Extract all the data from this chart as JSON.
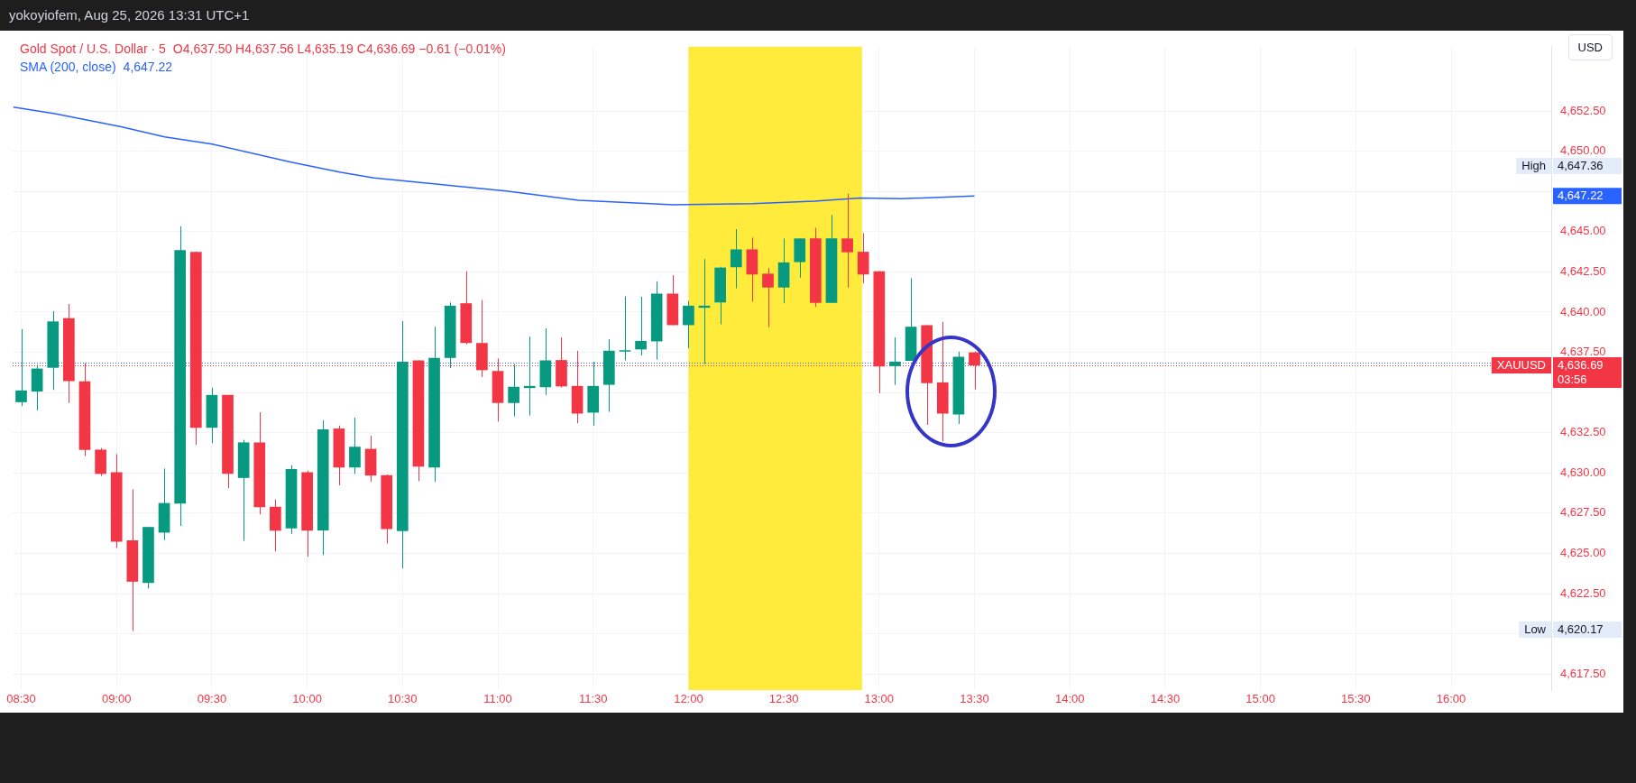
{
  "chart_data": {
    "type": "candlestick",
    "title": "Gold Spot / U.S. Dollar · 5",
    "subtitle": "O4,637.50  H4,637.56  L4,635.19  C4,636.69  −0.61 (−0.01%)",
    "x": [
      8.5,
      8.5833,
      8.6667,
      8.75,
      8.8333,
      8.9167,
      9,
      9.0833,
      9.1667,
      9.25,
      9.3333,
      9.4167,
      9.5,
      9.5833,
      9.6667,
      9.75,
      9.8333,
      9.9167,
      10,
      10.0833,
      10.1667,
      10.25,
      10.3333,
      10.4167,
      10.5,
      10.5833,
      10.6667,
      10.75,
      10.8333,
      10.9167,
      11,
      11.0833,
      11.1667,
      11.25,
      11.3333,
      11.4167,
      11.5,
      11.5833,
      11.6667,
      11.75,
      11.8333,
      11.9167,
      12,
      12.0833,
      12.1667,
      12.25,
      12.3333,
      12.4167,
      12.5,
      12.5833,
      12.6667,
      12.75,
      12.8333,
      12.9167,
      13,
      13.0833,
      13.1667,
      13.25,
      13.3333,
      13.4167,
      13.5
    ],
    "ohlc": [
      [
        4634.4,
        4638.94,
        4634.15,
        4635.13
      ],
      [
        4635.06,
        4636.72,
        4633.9,
        4636.49
      ],
      [
        4636.54,
        4640.07,
        4635.16,
        4639.42
      ],
      [
        4639.62,
        4640.5,
        4634.35,
        4635.71
      ],
      [
        4635.69,
        4636.84,
        4631.05,
        4631.43
      ],
      [
        4631.45,
        4631.55,
        4629.81,
        4629.94
      ],
      [
        4630.04,
        4631.17,
        4625.33,
        4625.73
      ],
      [
        4625.81,
        4628.98,
        4620.17,
        4623.24
      ],
      [
        4623.16,
        4626.64,
        4622.81,
        4626.64
      ],
      [
        4626.29,
        4630.27,
        4625.83,
        4628.13
      ],
      [
        4628.1,
        4645.34,
        4626.71,
        4643.85
      ],
      [
        4643.75,
        4643.75,
        4631.75,
        4632.81
      ],
      [
        4632.81,
        4635.31,
        4631.85,
        4634.85
      ],
      [
        4634.85,
        4634.85,
        4629.06,
        4629.94
      ],
      [
        4629.69,
        4632.06,
        4625.78,
        4631.9
      ],
      [
        4631.9,
        4633.77,
        4627.42,
        4627.87
      ],
      [
        4627.9,
        4628.35,
        4625.13,
        4626.41
      ],
      [
        4626.56,
        4630.49,
        4626.21,
        4630.24
      ],
      [
        4630.04,
        4630.14,
        4624.8,
        4626.41
      ],
      [
        4626.43,
        4633.27,
        4624.9,
        4632.71
      ],
      [
        4632.76,
        4632.94,
        4629.23,
        4630.34
      ],
      [
        4630.34,
        4633.44,
        4629.94,
        4631.63
      ],
      [
        4631.5,
        4632.31,
        4629.46,
        4629.84
      ],
      [
        4629.86,
        4629.91,
        4625.61,
        4626.51
      ],
      [
        4626.39,
        4639.44,
        4624.07,
        4636.92
      ],
      [
        4637,
        4637,
        4629.49,
        4630.39
      ],
      [
        4630.34,
        4639.09,
        4629.44,
        4637.15
      ],
      [
        4637.15,
        4640.6,
        4636.52,
        4640.4
      ],
      [
        4640.55,
        4642.54,
        4638,
        4638.08
      ],
      [
        4638.08,
        4640.75,
        4635.96,
        4636.39
      ],
      [
        4636.34,
        4637.12,
        4633.19,
        4634.35
      ],
      [
        4634.35,
        4636.77,
        4633.52,
        4635.36
      ],
      [
        4635.28,
        4638.48,
        4633.57,
        4635.41
      ],
      [
        4635.33,
        4638.99,
        4634.85,
        4637
      ],
      [
        4637.02,
        4638.43,
        4635.31,
        4635.38
      ],
      [
        4635.41,
        4637.6,
        4633.09,
        4633.69
      ],
      [
        4633.75,
        4636.92,
        4632.94,
        4635.41
      ],
      [
        4635.48,
        4638.31,
        4633.8,
        4637.6
      ],
      [
        4637.55,
        4640.98,
        4637,
        4637.63
      ],
      [
        4637.68,
        4640.95,
        4637.3,
        4638.21
      ],
      [
        4638.18,
        4641.91,
        4637.05,
        4641.15
      ],
      [
        4641.15,
        4642.29,
        4639.19,
        4639.19
      ],
      [
        4639.19,
        4640.7,
        4637.75,
        4640.4
      ],
      [
        4640.27,
        4643.3,
        4636.77,
        4640.4
      ],
      [
        4640.6,
        4642.82,
        4639.24,
        4642.77
      ],
      [
        4642.79,
        4645.16,
        4641.48,
        4643.9
      ],
      [
        4643.9,
        4644.63,
        4640.65,
        4642.34
      ],
      [
        4642.39,
        4642.74,
        4639.06,
        4641.53
      ],
      [
        4641.53,
        4644.58,
        4640.55,
        4643.09
      ],
      [
        4643.11,
        4644.58,
        4642.14,
        4644.58
      ],
      [
        4644.58,
        4645.24,
        4640.32,
        4640.57
      ],
      [
        4640.57,
        4646.04,
        4640.57,
        4644.58
      ],
      [
        4644.58,
        4647.36,
        4641.53,
        4643.72
      ],
      [
        4643.75,
        4644.91,
        4641.78,
        4642.34
      ],
      [
        4642.54,
        4642.54,
        4634.96,
        4636.62
      ],
      [
        4636.64,
        4638.43,
        4635.48,
        4636.92
      ],
      [
        4636.97,
        4642.11,
        4636.97,
        4639.09
      ],
      [
        4639.19,
        4639.19,
        4632.99,
        4635.58
      ],
      [
        4635.63,
        4639.39,
        4631.96,
        4633.69
      ],
      [
        4633.64,
        4637.55,
        4633.04,
        4637.22
      ],
      [
        4637.5,
        4637.56,
        4635.19,
        4636.69
      ]
    ],
    "series": [
      {
        "type": "line",
        "name": "SMA (200, close)",
        "color": "#2962ff",
        "x": [
          8.459,
          8.676,
          9.024,
          9.252,
          9.502,
          9.915,
          10.176,
          10.35,
          10.676,
          11.043,
          11.422,
          11.922,
          12.335,
          12.661,
          12.9,
          13.117,
          13.5
        ],
        "values": [
          4652.75,
          4652.34,
          4651.53,
          4650.9,
          4650.45,
          4649.32,
          4648.69,
          4648.34,
          4647.96,
          4647.53,
          4646.95,
          4646.67,
          4646.75,
          4646.9,
          4647.1,
          4647.05,
          4647.22
        ]
      }
    ],
    "xlim": [
      8.455,
      16.525
    ],
    "xticks": [
      {
        "value": 8.5,
        "label": "08:30"
      },
      {
        "value": 9,
        "label": "09:00"
      },
      {
        "value": 9.5,
        "label": "09:30"
      },
      {
        "value": 10,
        "label": "10:00"
      },
      {
        "value": 10.5,
        "label": "10:30"
      },
      {
        "value": 11,
        "label": "11:00"
      },
      {
        "value": 11.5,
        "label": "11:30"
      },
      {
        "value": 12,
        "label": "12:00"
      },
      {
        "value": 12.5,
        "label": "12:30"
      },
      {
        "value": 13,
        "label": "13:00"
      },
      {
        "value": 13.5,
        "label": "13:30"
      },
      {
        "value": 14,
        "label": "14:00"
      },
      {
        "value": 14.5,
        "label": "14:30"
      },
      {
        "value": 15,
        "label": "15:00"
      },
      {
        "value": 15.5,
        "label": "15:30"
      },
      {
        "value": 16,
        "label": "16:00"
      }
    ],
    "ylim": [
      4616.5,
      4656.5
    ],
    "yticks": [
      {
        "value": 4617.5,
        "label": "4,617.50"
      },
      {
        "value": 4620,
        "label": null
      },
      {
        "value": 4622.5,
        "label": "4,622.50"
      },
      {
        "value": 4625,
        "label": "4,625.00"
      },
      {
        "value": 4627.5,
        "label": "4,627.50"
      },
      {
        "value": 4630,
        "label": "4,630.00"
      },
      {
        "value": 4632.5,
        "label": "4,632.50"
      },
      {
        "value": 4635,
        "label": null
      },
      {
        "value": 4637.5,
        "label": "4,637.50"
      },
      {
        "value": 4640,
        "label": "4,640.00"
      },
      {
        "value": 4642.5,
        "label": "4,642.50"
      },
      {
        "value": 4645,
        "label": "4,645.00"
      },
      {
        "value": 4647.5,
        "label": null
      },
      {
        "value": 4650,
        "label": "4,650.00"
      },
      {
        "value": 4652.5,
        "label": "4,652.50"
      }
    ],
    "bands": [
      {
        "axis": "x",
        "from": 12,
        "to": 12.91,
        "color": "#ffeb3b"
      }
    ],
    "ref_lines": [
      {
        "axis": "y",
        "value": 4636.84,
        "color": "#2962ff",
        "line_style": "dotted"
      },
      {
        "axis": "y",
        "value": 4636.69,
        "label": "XAUUSD",
        "color": "#f23645",
        "line_style": "dotted"
      }
    ],
    "annotations": [
      "yokoyiofem, Aug 25, 2026 13:31 UTC+1",
      "USD",
      "03:56",
      "High",
      "4,647.36",
      "Low",
      "4,620.17",
      "4,636.69",
      "4,647.22"
    ],
    "grid": true,
    "legend": "top left"
  }
}
